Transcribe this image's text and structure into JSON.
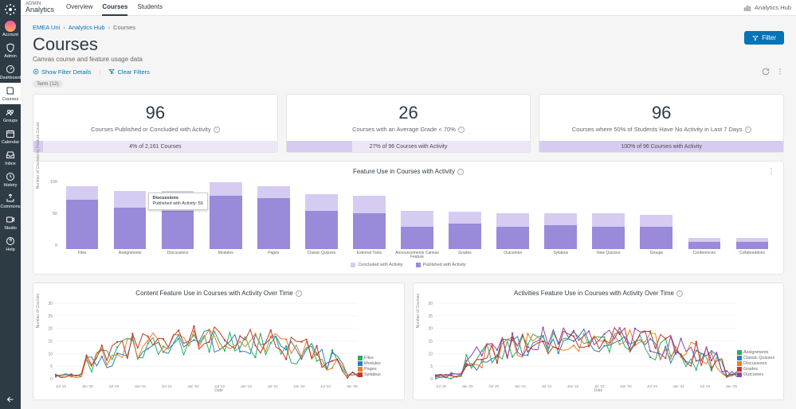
{
  "brand": {
    "line1": "ADMIN",
    "line2": "Analytics"
  },
  "header_right": "Analytics Hub",
  "tabs": {
    "items": [
      "Overview",
      "Courses",
      "Students"
    ],
    "active": 1
  },
  "breadcrumb": {
    "items": [
      "EMEA Uni",
      "Analytics Hub",
      "Courses"
    ]
  },
  "page": {
    "title": "Courses",
    "subtitle": "Canvas course and feature usage data"
  },
  "filter_btn": "Filter",
  "filters": {
    "show": "Show Filter Details",
    "clear": "Clear Filters",
    "chip": "Term (12)"
  },
  "sidebar": [
    {
      "key": "account",
      "label": "Account",
      "type": "avatar"
    },
    {
      "key": "admin",
      "label": "Admin",
      "type": "shield"
    },
    {
      "key": "dashboard",
      "label": "Dashboard",
      "type": "gauge"
    },
    {
      "key": "courses",
      "label": "Courses",
      "type": "book",
      "active": true
    },
    {
      "key": "groups",
      "label": "Groups",
      "type": "group"
    },
    {
      "key": "calendar",
      "label": "Calendar",
      "type": "calendar"
    },
    {
      "key": "inbox",
      "label": "Inbox",
      "type": "inbox"
    },
    {
      "key": "history",
      "label": "History",
      "type": "clock"
    },
    {
      "key": "commons",
      "label": "Commons",
      "type": "share"
    },
    {
      "key": "studio",
      "label": "Studio",
      "type": "video"
    },
    {
      "key": "help",
      "label": "Help",
      "type": "help"
    }
  ],
  "cards": [
    {
      "value": "96",
      "label": "Courses Published or Concluded with Activity",
      "bar_text": "4% of 2,161 Courses",
      "fill": 4
    },
    {
      "value": "26",
      "label": "Courses with an Average Grade < 70%",
      "bar_text": "27% of 96 Courses with Activity",
      "fill": 27
    },
    {
      "value": "96",
      "label": "Courses where 50% of Students Have No Activity in Last 7 Days",
      "bar_text": "100% of 96 Courses with Activity",
      "fill": 100
    }
  ],
  "feature_chart": {
    "title": "Feature Use in Courses with Activity",
    "y_ticks": [
      "100",
      "50",
      "0"
    ],
    "y_label": "Number of Courses by Feature Count",
    "categories": [
      "Files",
      "Assignments",
      "Discussions",
      "Modules",
      "Pages",
      "Classic Quizzes",
      "External Tools",
      "Announcements Canvas Feature",
      "Grades",
      "Outcomes",
      "Syllabus",
      "New Quizzes",
      "Groups",
      "Conferences",
      "Collaborations"
    ],
    "published": [
      72,
      60,
      56,
      78,
      75,
      56,
      52,
      33,
      37,
      32,
      35,
      33,
      32,
      10,
      10
    ],
    "concluded": [
      92,
      85,
      85,
      98,
      92,
      80,
      78,
      56,
      55,
      52,
      52,
      52,
      50,
      16,
      16
    ],
    "tooltip": {
      "idx": 2,
      "title": "Discussions",
      "line": "Published with Activity: 56"
    },
    "colors": {
      "upper": "#d6ccf2",
      "lower": "#9b89d9"
    },
    "legend": [
      {
        "label": "Concluded with Activity",
        "color": "#d6ccf2"
      },
      {
        "label": "Published with Activity",
        "color": "#9b89d9"
      }
    ]
  },
  "line1": {
    "title": "Content Feature Use in Courses with Activity Over Time",
    "y_ticks": [
      "30",
      "25",
      "20",
      "15",
      "10",
      "5",
      "0"
    ],
    "y_label": "Number of Courses",
    "x_label": "Date",
    "x_ticks": [
      "Jul '19",
      "Jan '20",
      "Jul '20",
      "Jan '21",
      "Jul '21",
      "Jan '22",
      "Jul '22",
      "Jan '23",
      "Jul '23",
      "Jan '24",
      "Jul '24",
      "Jan '25"
    ],
    "series": [
      {
        "name": "Files",
        "color": "#27ae60"
      },
      {
        "name": "Modules",
        "color": "#2980b9"
      },
      {
        "name": "Pages",
        "color": "#e67e22"
      },
      {
        "name": "Syllabus",
        "color": "#c0392b"
      }
    ]
  },
  "line2": {
    "title": "Activities Feature Use in Courses with Activity Over Time",
    "y_ticks": [
      "30",
      "25",
      "20",
      "15",
      "10",
      "5",
      "0"
    ],
    "y_label": "Number of Courses",
    "x_label": "Date",
    "x_ticks": [
      "Jul '19",
      "Jan '20",
      "Jul '20",
      "Jan '21",
      "Jul '21",
      "Jan '22",
      "Jul '22",
      "Jan '23",
      "Jul '23",
      "Jan '24",
      "Jul '24",
      "Jan '25"
    ],
    "series": [
      {
        "name": "Assignments",
        "color": "#27ae60"
      },
      {
        "name": "Classic Quizzes",
        "color": "#2980b9"
      },
      {
        "name": "Discussions",
        "color": "#e67e22"
      },
      {
        "name": "Grades",
        "color": "#c0392b"
      },
      {
        "name": "Outcomes",
        "color": "#8e44ad"
      }
    ]
  }
}
